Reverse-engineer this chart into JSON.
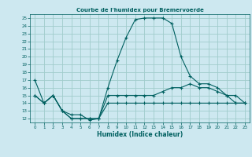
{
  "title": "Courbe de l'humidex pour Bremervoerde",
  "xlabel": "Humidex (Indice chaleur)",
  "background_color": "#cde8f0",
  "grid_color": "#a0cccc",
  "line_color": "#006060",
  "xlim": [
    -0.5,
    23.5
  ],
  "ylim": [
    11.5,
    25.5
  ],
  "xticks": [
    0,
    1,
    2,
    3,
    4,
    5,
    6,
    7,
    8,
    9,
    10,
    11,
    12,
    13,
    14,
    15,
    16,
    17,
    18,
    19,
    20,
    21,
    22,
    23
  ],
  "yticks": [
    12,
    13,
    14,
    15,
    16,
    17,
    18,
    19,
    20,
    21,
    22,
    23,
    24,
    25
  ],
  "curve1_x": [
    0,
    1,
    2,
    3,
    4,
    5,
    6,
    7,
    8,
    9,
    10,
    11,
    12,
    13,
    14,
    15,
    16,
    17,
    18,
    19,
    20,
    21,
    22,
    23
  ],
  "curve1_y": [
    17,
    14,
    15,
    13,
    12,
    12,
    12,
    12,
    16,
    19.5,
    22.5,
    24.8,
    25,
    25,
    25,
    24.3,
    20,
    17.5,
    16.5,
    16.5,
    16,
    15,
    15,
    14
  ],
  "curve2_x": [
    0,
    1,
    2,
    3,
    4,
    5,
    6,
    7,
    8,
    9,
    10,
    11,
    12,
    13,
    14,
    15,
    16,
    17,
    18,
    19,
    20,
    21,
    22,
    23
  ],
  "curve2_y": [
    15,
    14,
    15,
    13,
    12,
    12,
    12,
    12,
    15,
    15,
    15,
    15,
    15,
    15,
    15.5,
    16,
    16,
    16.5,
    16,
    16,
    15.5,
    15,
    14,
    14
  ],
  "curve3_x": [
    0,
    1,
    2,
    3,
    4,
    5,
    6,
    7,
    8,
    9,
    10,
    11,
    12,
    13,
    14,
    15,
    16,
    17,
    18,
    19,
    20,
    21,
    22,
    23
  ],
  "curve3_y": [
    15,
    14,
    15,
    13,
    12.5,
    12.5,
    11.8,
    12,
    14,
    14,
    14,
    14,
    14,
    14,
    14,
    14,
    14,
    14,
    14,
    14,
    14,
    14,
    14,
    14
  ]
}
